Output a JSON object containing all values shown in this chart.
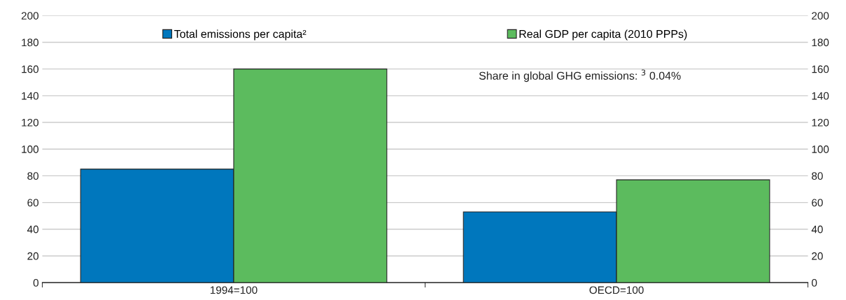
{
  "chart_data": {
    "type": "bar",
    "categories": [
      "1994=100",
      "OECD=100"
    ],
    "series": [
      {
        "name": "Total emissions per capita²",
        "color": "#0077bd",
        "values": [
          85,
          53
        ]
      },
      {
        "name": "Real GDP per capita (2010 PPPs)",
        "color": "#5cbb5e",
        "values": [
          160,
          77
        ]
      }
    ],
    "ylim": [
      0,
      200
    ],
    "yticks": [
      0,
      20,
      40,
      60,
      80,
      100,
      120,
      140,
      160,
      180,
      200
    ],
    "y2lim": [
      0,
      200
    ],
    "y2ticks": [
      0,
      20,
      40,
      60,
      80,
      100,
      120,
      140,
      160,
      180,
      200
    ],
    "annotations": [
      "Share in global GHG emissions: $^{3}$ 0.04%"
    ],
    "grid": "y",
    "legend": "top"
  }
}
